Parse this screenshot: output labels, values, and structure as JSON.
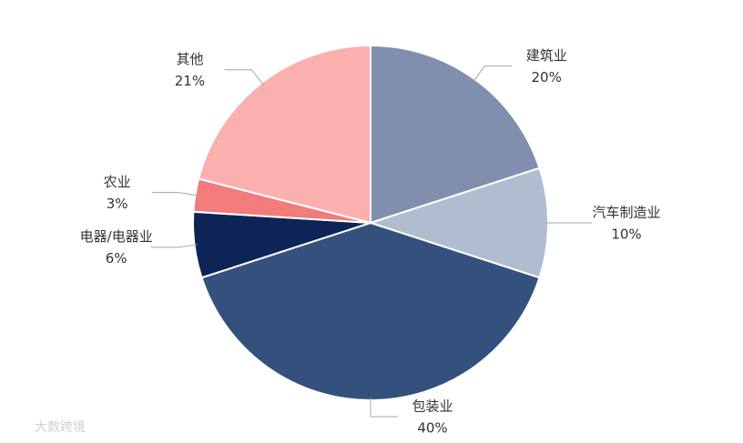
{
  "chart_data": {
    "type": "pie",
    "categories": [
      "建筑业",
      "汽车制造业",
      "包装业",
      "电器/电器业",
      "农业",
      "其他"
    ],
    "values": [
      20,
      10,
      40,
      6,
      3,
      21
    ],
    "value_labels": [
      "20%",
      "10%",
      "40%",
      "6%",
      "3%",
      "21%"
    ],
    "colors": [
      "#7f8fad",
      "#b0bccf",
      "#34507c",
      "#0d2456",
      "#f27b7b",
      "#fbb0b0"
    ]
  },
  "watermark": "大数跨境"
}
